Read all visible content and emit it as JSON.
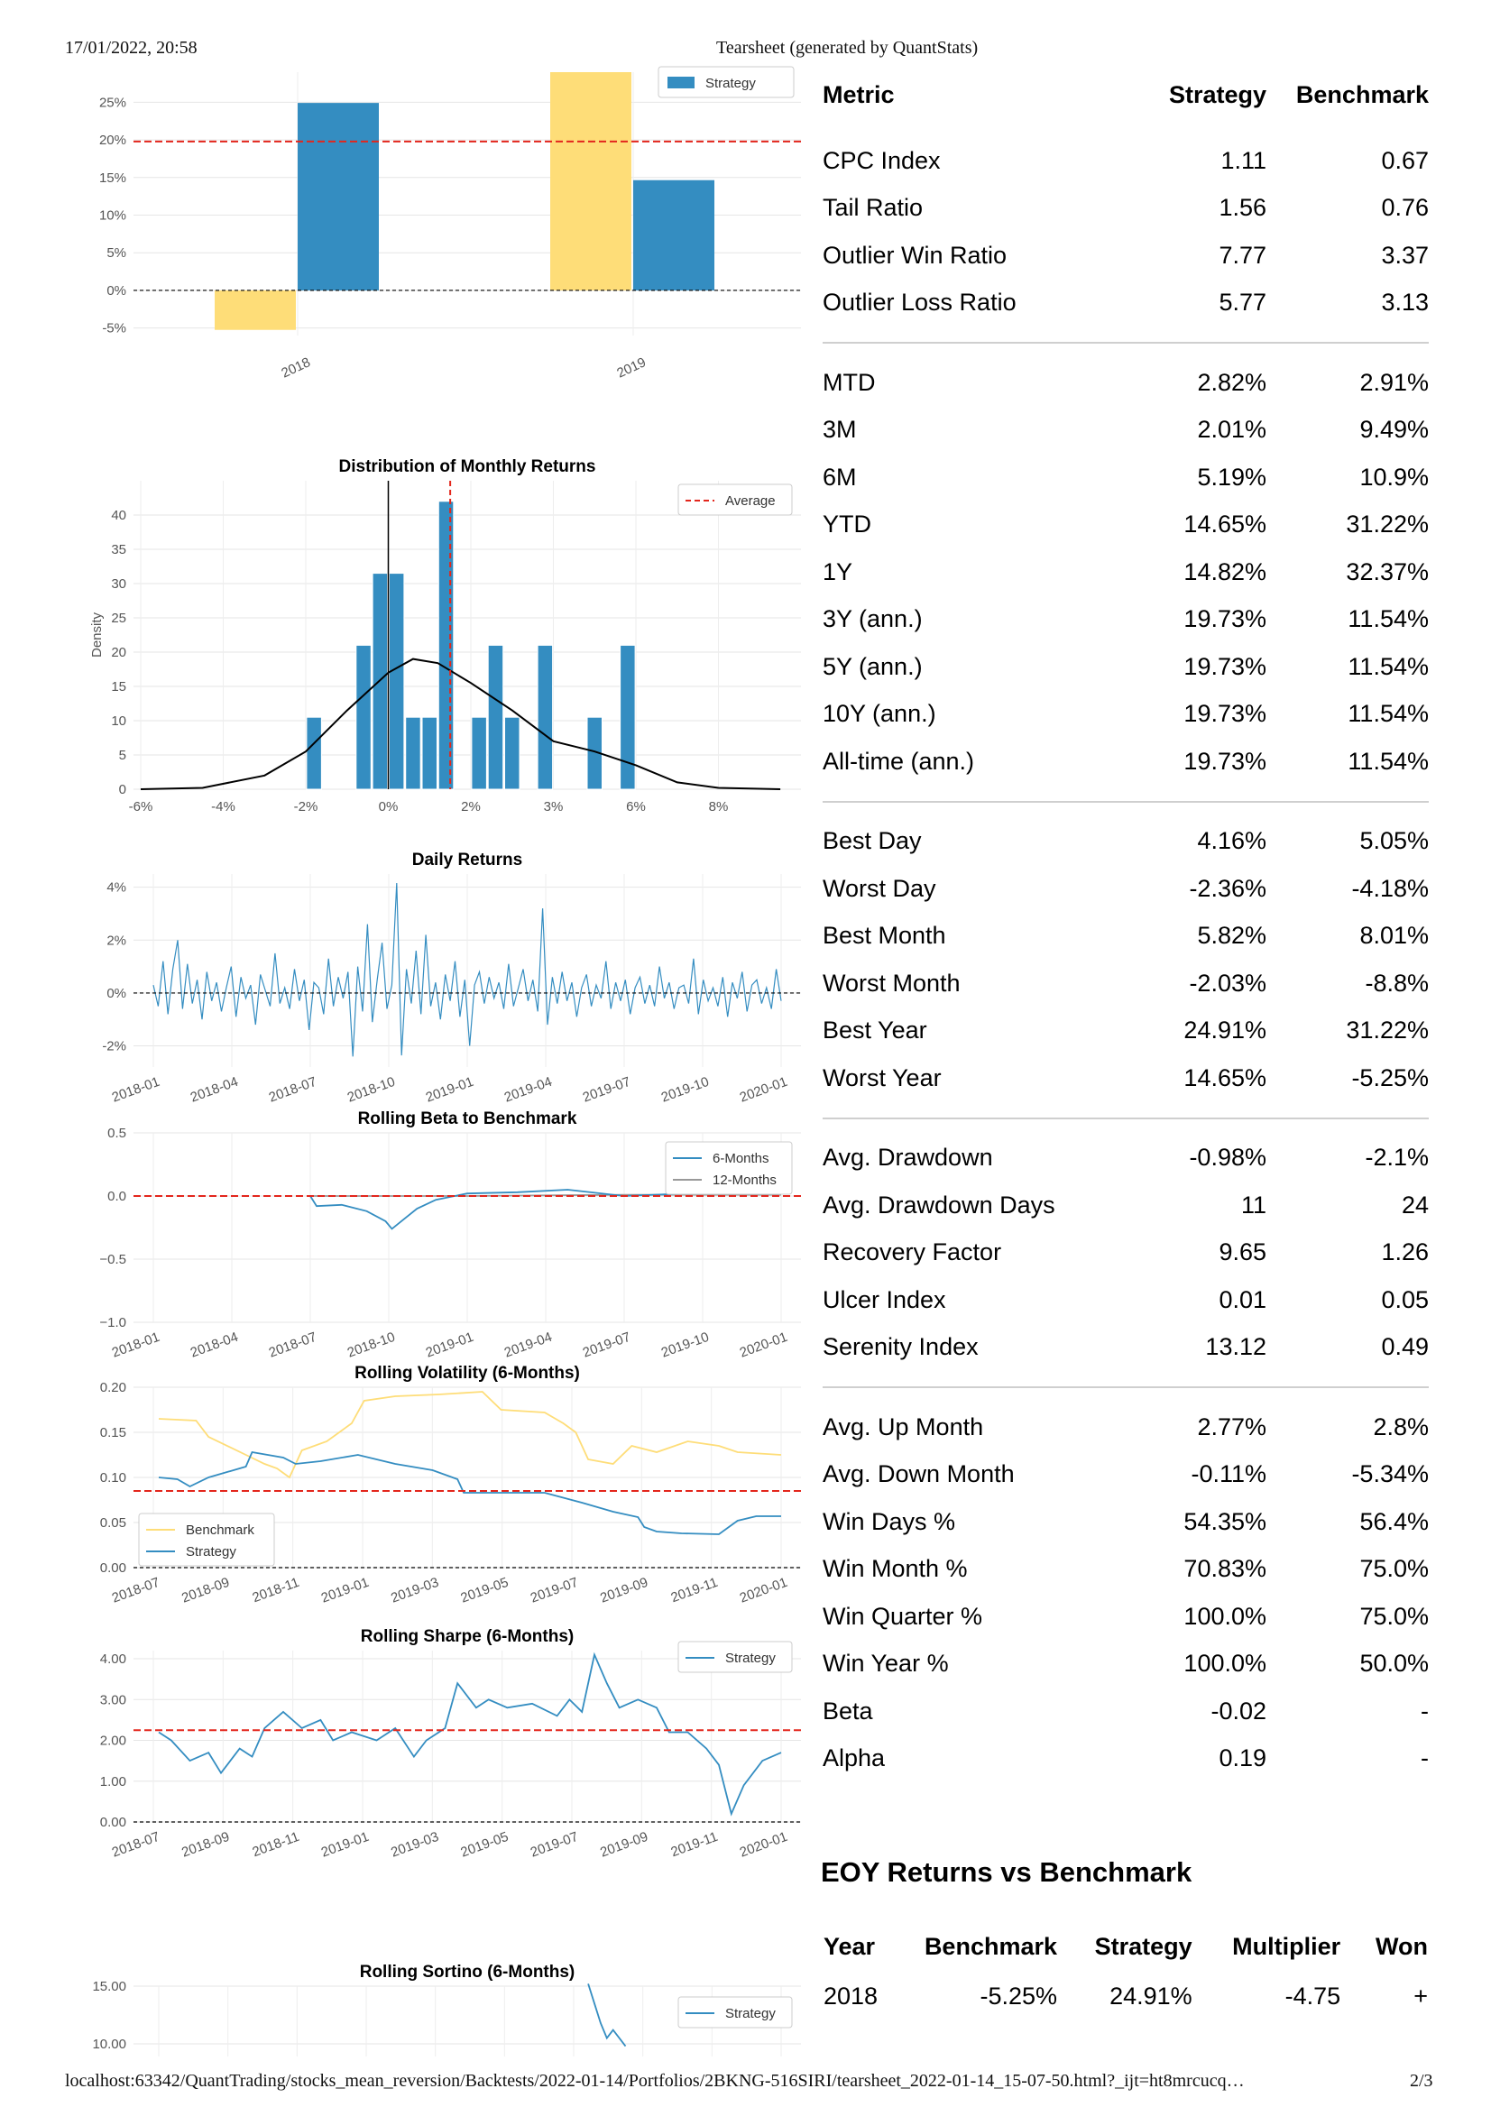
{
  "header": {
    "date": "17/01/2022, 20:58",
    "title": "Tearsheet (generated by QuantStats)"
  },
  "footer": {
    "url": "localhost:63342/QuantTrading/stocks_mean_reversion/Backtests/2022-01-14/Portfolios/2BKNG-516SIRI/tearsheet_2022-01-14_15-07-50.html?_ijt=ht8mrcucq…",
    "page": "2/3"
  },
  "colors": {
    "strategy": "#348dc1",
    "benchmark": "#fedd78",
    "average_line": "#e3261c",
    "zero_line": "#000000"
  },
  "chart_data": [
    {
      "id": "eoy_returns",
      "type": "bar",
      "title": "",
      "categories": [
        "2018",
        "2019"
      ],
      "series": [
        {
          "name": "",
          "values": [
            -5.25,
            31.22
          ],
          "color": "#fedd78"
        },
        {
          "name": "Strategy",
          "values": [
            24.91,
            14.65
          ],
          "color": "#348dc1"
        }
      ],
      "average": 19.78,
      "y_ticks": [
        "25%",
        "20%",
        "15%",
        "10%",
        "5%",
        "0%",
        "-5%"
      ],
      "x_ticks": [
        "2018",
        "2019"
      ],
      "ylim": [
        -6,
        29
      ],
      "legend": [
        "Strategy"
      ],
      "legend_position": "top-right",
      "grid": true
    },
    {
      "id": "distribution",
      "type": "bar",
      "title": "Distribution of Monthly Returns",
      "ylabel": "Density",
      "bins": [
        {
          "x": -1.8,
          "density": 10.5
        },
        {
          "x": -0.6,
          "density": 21
        },
        {
          "x": -0.2,
          "density": 31.5
        },
        {
          "x": 0.2,
          "density": 31.5
        },
        {
          "x": 0.6,
          "density": 10.5
        },
        {
          "x": 1.0,
          "density": 10.5
        },
        {
          "x": 1.4,
          "density": 42
        },
        {
          "x": 2.2,
          "density": 10.5
        },
        {
          "x": 2.6,
          "density": 21
        },
        {
          "x": 3.0,
          "density": 10.5
        },
        {
          "x": 3.8,
          "density": 21
        },
        {
          "x": 5.0,
          "density": 10.5
        },
        {
          "x": 5.8,
          "density": 21
        }
      ],
      "kde": [
        [
          -6,
          0
        ],
        [
          -4.5,
          0.2
        ],
        [
          -3,
          2
        ],
        [
          -2,
          5.5
        ],
        [
          -1,
          11.5
        ],
        [
          0,
          17
        ],
        [
          0.6,
          19
        ],
        [
          1.2,
          18.4
        ],
        [
          2,
          15.5
        ],
        [
          3,
          11.5
        ],
        [
          4,
          7
        ],
        [
          5,
          5.5
        ],
        [
          6,
          3.5
        ],
        [
          7,
          1
        ],
        [
          8,
          0.2
        ],
        [
          9.5,
          0
        ]
      ],
      "average": 1.5,
      "zero": 0,
      "xlim": [
        -6,
        10
      ],
      "ylim": [
        0,
        45
      ],
      "x_ticks": [
        "-6%",
        "-4%",
        "-2%",
        "0%",
        "2%",
        "3%",
        "6%",
        "8%"
      ],
      "y_ticks": [
        "0",
        "5",
        "10",
        "15",
        "20",
        "25",
        "30",
        "35",
        "40"
      ],
      "legend": [
        "Average"
      ],
      "legend_position": "top-right"
    },
    {
      "id": "daily_returns",
      "type": "line",
      "title": "Daily Returns",
      "ylim": [
        -2.8,
        4.5
      ],
      "y_ticks": [
        "4%",
        "2%",
        "0%",
        "-2%"
      ],
      "x_ticks": [
        "2018-01",
        "2018-04",
        "2018-07",
        "2018-10",
        "2019-01",
        "2019-04",
        "2019-07",
        "2019-10",
        "2020-01"
      ],
      "values": [
        0.3,
        -0.5,
        1.2,
        -0.8,
        0.9,
        2.0,
        -0.6,
        1.1,
        -0.4,
        0.5,
        -1.0,
        0.8,
        -0.3,
        0.4,
        -0.7,
        0.2,
        1.0,
        -0.9,
        0.6,
        -0.2,
        0.3,
        -1.2,
        0.7,
        0.1,
        -0.5,
        1.5,
        -0.4,
        0.2,
        -0.6,
        0.9,
        -0.3,
        0.5,
        -1.4,
        0.4,
        0.2,
        -0.8,
        1.3,
        -0.5,
        0.6,
        -0.2,
        0.8,
        -2.4,
        1.0,
        -0.7,
        2.6,
        -1.1,
        0.5,
        1.9,
        -0.6,
        0.3,
        4.16,
        -2.36,
        0.9,
        -0.4,
        1.6,
        -0.8,
        2.2,
        -0.5,
        0.4,
        -1.0,
        0.7,
        -0.3,
        1.2,
        -0.9,
        0.5,
        -2.0,
        0.3,
        0.8,
        -0.4,
        0.6,
        -0.2,
        0.4,
        -0.6,
        1.1,
        -0.5,
        0.2,
        0.9,
        -0.3,
        0.5,
        -0.7,
        3.2,
        -1.2,
        0.6,
        -0.4,
        0.8,
        -0.3,
        0.4,
        -0.9,
        0.2,
        0.7,
        -0.5,
        0.3,
        -0.2,
        1.2,
        -0.6,
        0.4,
        -0.3,
        0.5,
        -0.8,
        0.2,
        0.6,
        -0.4,
        0.3,
        -0.5,
        1.0,
        -0.2,
        0.4,
        -0.6,
        0.2,
        0.3,
        -0.4,
        1.3,
        -0.8,
        0.5,
        -0.3,
        0.2,
        -0.5,
        0.6,
        -0.9,
        0.4,
        -0.2,
        0.8,
        -0.7,
        0.3,
        0.5,
        -0.4,
        0.2,
        -0.6,
        0.9,
        -0.3
      ]
    },
    {
      "id": "rolling_beta",
      "type": "line",
      "title": "Rolling Beta to Benchmark",
      "ylim": [
        -1.0,
        0.5
      ],
      "y_ticks": [
        "0.5",
        "0.0",
        "−0.5",
        "−1.0"
      ],
      "x_ticks": [
        "2018-01",
        "2018-04",
        "2018-07",
        "2018-10",
        "2019-01",
        "2019-04",
        "2019-07",
        "2019-10",
        "2020-01"
      ],
      "average": 0.0,
      "legend": [
        "6-Months",
        "12-Months"
      ],
      "legend_position": "top-right",
      "series": [
        {
          "name": "6-Months",
          "color": "#348dc1",
          "values": [
            [
              0.25,
              0
            ],
            [
              0.26,
              -0.08
            ],
            [
              0.3,
              -0.07
            ],
            [
              0.34,
              -0.12
            ],
            [
              0.37,
              -0.2
            ],
            [
              0.38,
              -0.26
            ],
            [
              0.4,
              -0.18
            ],
            [
              0.42,
              -0.1
            ],
            [
              0.45,
              -0.03
            ],
            [
              0.5,
              0.02
            ],
            [
              0.58,
              0.03
            ],
            [
              0.66,
              0.05
            ],
            [
              0.75,
              0.0
            ],
            [
              0.85,
              0.02
            ],
            [
              0.95,
              0.02
            ],
            [
              1.0,
              0.02
            ]
          ]
        },
        {
          "name": "12-Months",
          "color": "#999999",
          "values": [
            [
              0.25,
              0
            ],
            [
              0.5,
              0.0
            ],
            [
              0.75,
              0.01
            ],
            [
              1.0,
              0.01
            ]
          ]
        }
      ]
    },
    {
      "id": "rolling_volatility",
      "type": "line",
      "title": "Rolling Volatility (6-Months)",
      "ylim": [
        0,
        0.2
      ],
      "y_ticks": [
        "0.20",
        "0.15",
        "0.10",
        "0.05",
        "0.00"
      ],
      "x_ticks": [
        "2018-07",
        "2018-09",
        "2018-11",
        "2019-01",
        "2019-03",
        "2019-05",
        "2019-07",
        "2019-09",
        "2019-11",
        "2020-01"
      ],
      "average": 0.085,
      "legend": [
        "Benchmark",
        "Strategy"
      ],
      "legend_position": "bottom-left",
      "series": [
        {
          "name": "Benchmark",
          "color": "#fedd78",
          "values": [
            [
              0,
              0.165
            ],
            [
              0.06,
              0.163
            ],
            [
              0.08,
              0.145
            ],
            [
              0.14,
              0.125
            ],
            [
              0.17,
              0.115
            ],
            [
              0.19,
              0.11
            ],
            [
              0.21,
              0.1
            ],
            [
              0.23,
              0.13
            ],
            [
              0.27,
              0.14
            ],
            [
              0.31,
              0.16
            ],
            [
              0.33,
              0.185
            ],
            [
              0.38,
              0.19
            ],
            [
              0.45,
              0.192
            ],
            [
              0.52,
              0.195
            ],
            [
              0.55,
              0.175
            ],
            [
              0.62,
              0.172
            ],
            [
              0.65,
              0.16
            ],
            [
              0.67,
              0.15
            ],
            [
              0.69,
              0.12
            ],
            [
              0.73,
              0.115
            ],
            [
              0.76,
              0.135
            ],
            [
              0.8,
              0.128
            ],
            [
              0.85,
              0.14
            ],
            [
              0.9,
              0.135
            ],
            [
              0.93,
              0.128
            ],
            [
              1.0,
              0.125
            ]
          ]
        },
        {
          "name": "Strategy",
          "color": "#348dc1",
          "values": [
            [
              0,
              0.1
            ],
            [
              0.03,
              0.098
            ],
            [
              0.05,
              0.09
            ],
            [
              0.08,
              0.1
            ],
            [
              0.14,
              0.112
            ],
            [
              0.15,
              0.128
            ],
            [
              0.2,
              0.122
            ],
            [
              0.22,
              0.115
            ],
            [
              0.26,
              0.118
            ],
            [
              0.32,
              0.125
            ],
            [
              0.38,
              0.115
            ],
            [
              0.44,
              0.108
            ],
            [
              0.48,
              0.098
            ],
            [
              0.49,
              0.083
            ],
            [
              0.62,
              0.083
            ],
            [
              0.68,
              0.072
            ],
            [
              0.73,
              0.062
            ],
            [
              0.77,
              0.056
            ],
            [
              0.78,
              0.045
            ],
            [
              0.8,
              0.04
            ],
            [
              0.84,
              0.038
            ],
            [
              0.9,
              0.037
            ],
            [
              0.93,
              0.052
            ],
            [
              0.96,
              0.057
            ],
            [
              1.0,
              0.057
            ]
          ]
        }
      ]
    },
    {
      "id": "rolling_sharpe",
      "type": "line",
      "title": "Rolling Sharpe (6-Months)",
      "ylim": [
        0,
        4.2
      ],
      "y_ticks": [
        "4.00",
        "3.00",
        "2.00",
        "1.00",
        "0.00"
      ],
      "x_ticks": [
        "2018-07",
        "2018-09",
        "2018-11",
        "2019-01",
        "2019-03",
        "2019-05",
        "2019-07",
        "2019-09",
        "2019-11",
        "2020-01"
      ],
      "average": 2.25,
      "legend": [
        "Strategy"
      ],
      "legend_position": "top-right",
      "series": [
        {
          "name": "Strategy",
          "color": "#348dc1",
          "values": [
            [
              0,
              2.2
            ],
            [
              0.02,
              2.0
            ],
            [
              0.05,
              1.5
            ],
            [
              0.08,
              1.7
            ],
            [
              0.1,
              1.2
            ],
            [
              0.13,
              1.8
            ],
            [
              0.15,
              1.6
            ],
            [
              0.17,
              2.3
            ],
            [
              0.2,
              2.7
            ],
            [
              0.23,
              2.3
            ],
            [
              0.26,
              2.5
            ],
            [
              0.28,
              2.0
            ],
            [
              0.31,
              2.2
            ],
            [
              0.35,
              2.0
            ],
            [
              0.38,
              2.3
            ],
            [
              0.41,
              1.6
            ],
            [
              0.43,
              2.0
            ],
            [
              0.46,
              2.3
            ],
            [
              0.48,
              3.4
            ],
            [
              0.51,
              2.8
            ],
            [
              0.53,
              3.0
            ],
            [
              0.56,
              2.8
            ],
            [
              0.6,
              2.9
            ],
            [
              0.64,
              2.6
            ],
            [
              0.66,
              3.0
            ],
            [
              0.68,
              2.7
            ],
            [
              0.7,
              4.1
            ],
            [
              0.72,
              3.4
            ],
            [
              0.74,
              2.8
            ],
            [
              0.77,
              3.0
            ],
            [
              0.8,
              2.8
            ],
            [
              0.82,
              2.2
            ],
            [
              0.85,
              2.2
            ],
            [
              0.88,
              1.8
            ],
            [
              0.9,
              1.4
            ],
            [
              0.92,
              0.2
            ],
            [
              0.94,
              0.9
            ],
            [
              0.97,
              1.5
            ],
            [
              1.0,
              1.7
            ]
          ]
        }
      ]
    },
    {
      "id": "rolling_sortino",
      "type": "line",
      "title": "Rolling Sortino (6-Months)",
      "ylim": [
        9.5,
        15.5
      ],
      "y_ticks": [
        "15.00",
        "10.00"
      ],
      "legend": [
        "Strategy"
      ],
      "legend_position": "top-right",
      "series": [
        {
          "name": "Strategy",
          "color": "#348dc1",
          "values": [
            [
              0.69,
              15.2
            ],
            [
              0.7,
              13.5
            ],
            [
              0.71,
              11.8
            ],
            [
              0.72,
              10.5
            ],
            [
              0.73,
              11.2
            ],
            [
              0.75,
              9.8
            ]
          ]
        }
      ]
    }
  ],
  "metrics": {
    "headers": [
      "Metric",
      "Strategy",
      "Benchmark"
    ],
    "groups": [
      [
        [
          "CPC Index",
          "1.11",
          "0.67"
        ],
        [
          "Tail Ratio",
          "1.56",
          "0.76"
        ],
        [
          "Outlier Win Ratio",
          "7.77",
          "3.37"
        ],
        [
          "Outlier Loss Ratio",
          "5.77",
          "3.13"
        ]
      ],
      [
        [
          "MTD",
          "2.82%",
          "2.91%"
        ],
        [
          "3M",
          "2.01%",
          "9.49%"
        ],
        [
          "6M",
          "5.19%",
          "10.9%"
        ],
        [
          "YTD",
          "14.65%",
          "31.22%"
        ],
        [
          "1Y",
          "14.82%",
          "32.37%"
        ],
        [
          "3Y (ann.)",
          "19.73%",
          "11.54%"
        ],
        [
          "5Y (ann.)",
          "19.73%",
          "11.54%"
        ],
        [
          "10Y (ann.)",
          "19.73%",
          "11.54%"
        ],
        [
          "All-time (ann.)",
          "19.73%",
          "11.54%"
        ]
      ],
      [
        [
          "Best Day",
          "4.16%",
          "5.05%"
        ],
        [
          "Worst Day",
          "-2.36%",
          "-4.18%"
        ],
        [
          "Best Month",
          "5.82%",
          "8.01%"
        ],
        [
          "Worst Month",
          "-2.03%",
          "-8.8%"
        ],
        [
          "Best Year",
          "24.91%",
          "31.22%"
        ],
        [
          "Worst Year",
          "14.65%",
          "-5.25%"
        ]
      ],
      [
        [
          "Avg. Drawdown",
          "-0.98%",
          "-2.1%"
        ],
        [
          "Avg. Drawdown Days",
          "11",
          "24"
        ],
        [
          "Recovery Factor",
          "9.65",
          "1.26"
        ],
        [
          "Ulcer Index",
          "0.01",
          "0.05"
        ],
        [
          "Serenity Index",
          "13.12",
          "0.49"
        ]
      ],
      [
        [
          "Avg. Up Month",
          "2.77%",
          "2.8%"
        ],
        [
          "Avg. Down Month",
          "-0.11%",
          "-5.34%"
        ],
        [
          "Win Days %",
          "54.35%",
          "56.4%"
        ],
        [
          "Win Month %",
          "70.83%",
          "75.0%"
        ],
        [
          "Win Quarter %",
          "100.0%",
          "75.0%"
        ],
        [
          "Win Year %",
          "100.0%",
          "50.0%"
        ],
        [
          "Beta",
          "-0.02",
          "-"
        ],
        [
          "Alpha",
          "0.19",
          "-"
        ]
      ]
    ]
  },
  "eoy": {
    "title": "EOY Returns vs Benchmark",
    "headers": [
      "Year",
      "Benchmark",
      "Strategy",
      "Multiplier",
      "Won"
    ],
    "rows": [
      [
        "2018",
        "-5.25%",
        "24.91%",
        "-4.75",
        "+"
      ]
    ]
  }
}
